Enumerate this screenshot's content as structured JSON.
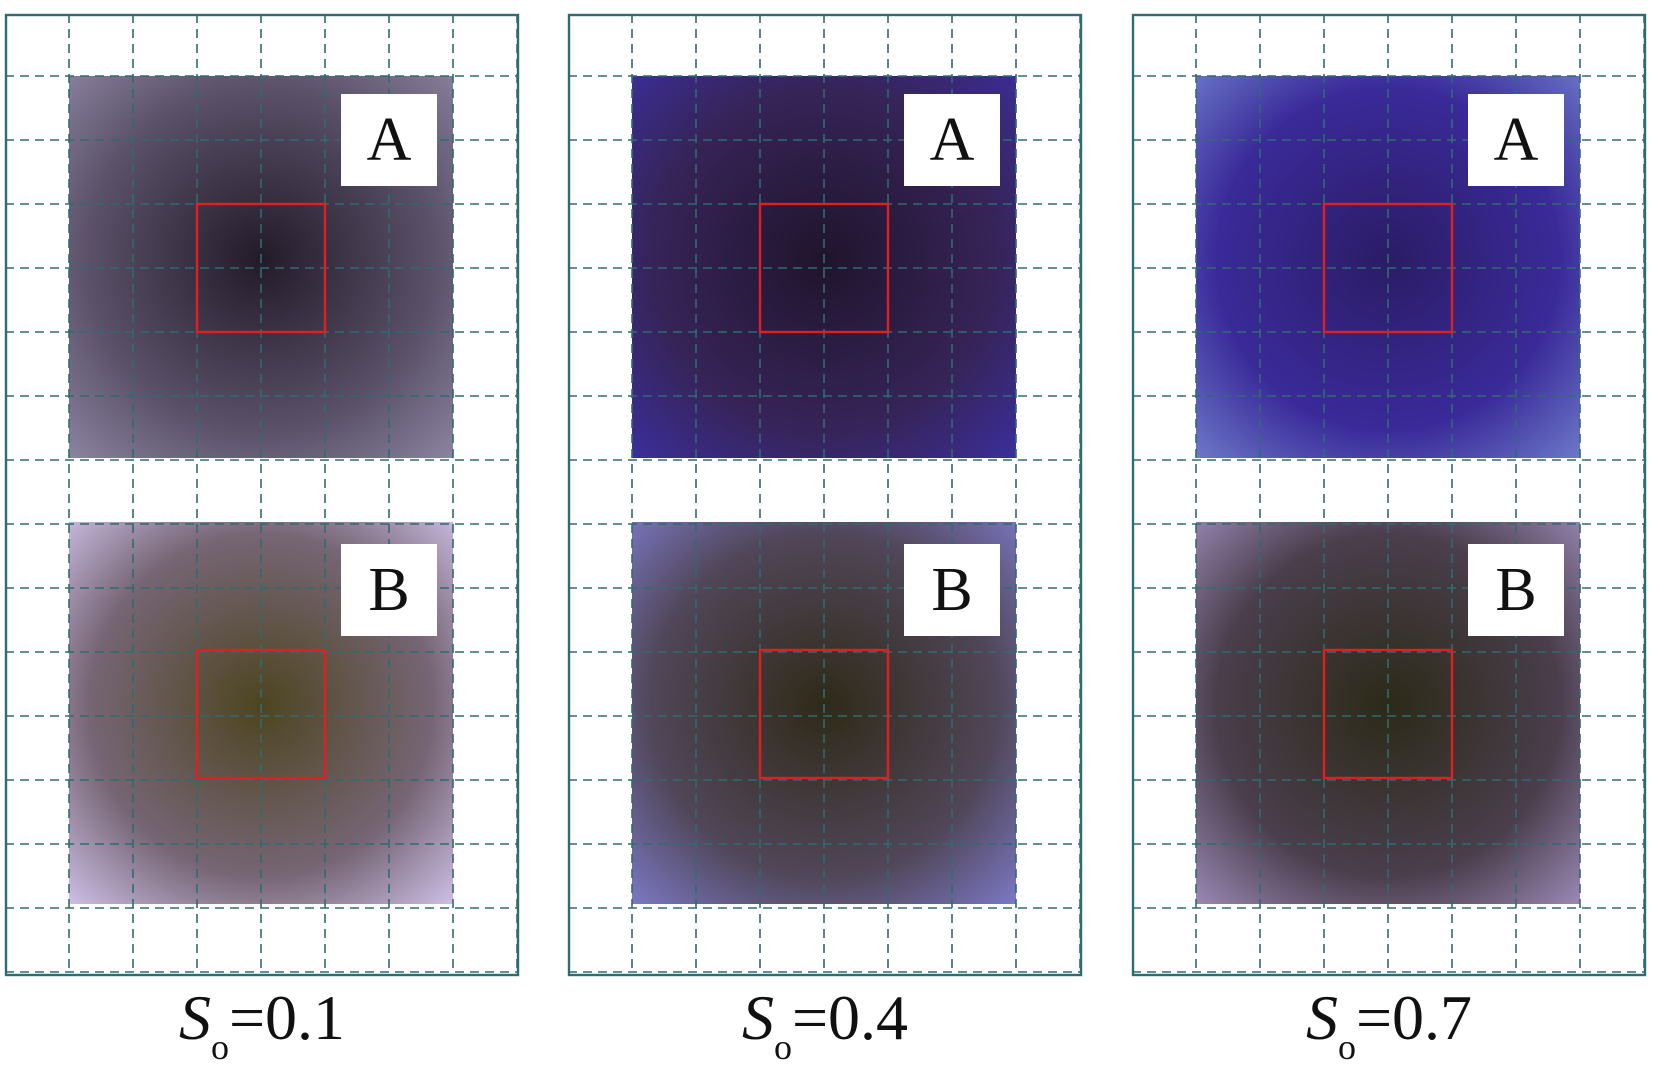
{
  "figure": {
    "panels": [
      {
        "id": "so-0.1",
        "caption": {
          "symbol": "S",
          "subscript": "o",
          "value": "=0.1"
        },
        "samples": [
          {
            "label": "A",
            "tone": "dark-purple",
            "colors": {
              "center": "#231a29",
              "edge": "#5a5068",
              "rim": "#8b84a0"
            }
          },
          {
            "label": "B",
            "tone": "olive-brown",
            "colors": {
              "center": "#4d4520",
              "edge": "#766574",
              "rim": "#cdbfe6"
            }
          }
        ]
      },
      {
        "id": "so-0.4",
        "caption": {
          "symbol": "S",
          "subscript": "o",
          "value": "=0.4"
        },
        "samples": [
          {
            "label": "A",
            "tone": "dark-indigo",
            "colors": {
              "center": "#20142c",
              "edge": "#362458",
              "rim": "#3b2e9b"
            }
          },
          {
            "label": "B",
            "tone": "dark-olive",
            "colors": {
              "center": "#2f2a18",
              "edge": "#504658",
              "rim": "#7b78c4"
            }
          }
        ]
      },
      {
        "id": "so-0.7",
        "caption": {
          "symbol": "S",
          "subscript": "o",
          "value": "=0.7"
        },
        "samples": [
          {
            "label": "A",
            "tone": "deep-blue",
            "colors": {
              "center": "#2b1c66",
              "edge": "#3a2a99",
              "rim": "#6c78c8"
            }
          },
          {
            "label": "B",
            "tone": "dark-olive",
            "colors": {
              "center": "#2c2a18",
              "edge": "#4a3e4c",
              "rim": "#9a88b4"
            }
          }
        ]
      }
    ],
    "colors": {
      "frame": "#2f6b72",
      "grid": "#2f6b72",
      "roi": "#e02020",
      "label_box": "#ffffff",
      "label_text": "#111111"
    }
  }
}
